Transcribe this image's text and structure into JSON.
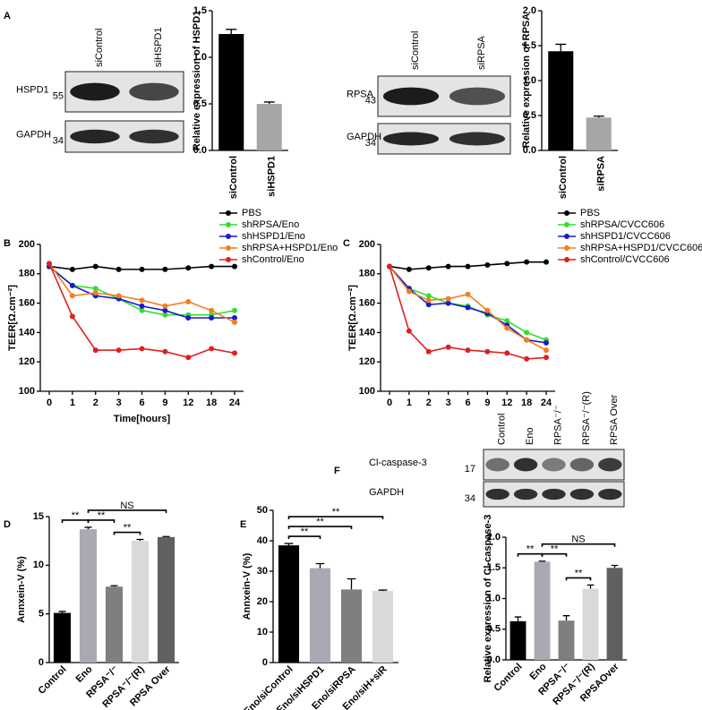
{
  "panel_labels": [
    "A",
    "B",
    "C",
    "D",
    "E",
    "F"
  ],
  "blots": [
    {
      "lanes": [
        "siControl",
        "siHSPD1"
      ],
      "rows": [
        {
          "name": "HSPD1",
          "size": "55"
        },
        {
          "name": "GAPDH",
          "size": "34"
        }
      ]
    },
    {
      "lanes": [
        "siControl",
        "siRPSA"
      ],
      "rows": [
        {
          "name": "RPSA",
          "size": "43"
        },
        {
          "name": "GAPDH",
          "size": "34"
        }
      ]
    },
    {
      "lanes": [
        "Control",
        "Eno",
        "RPSA⁻/⁻",
        "RPSA⁻/⁻(R)",
        "RPSA Over"
      ],
      "rows": [
        {
          "name": "Cl-caspase-3",
          "size": "17"
        },
        {
          "name": "GAPDH",
          "size": "34"
        }
      ]
    }
  ],
  "chart_data": [
    {
      "type": "bar",
      "ylabel": "Relative expression of HSPD1",
      "categories": [
        "siControl",
        "siHSPD1"
      ],
      "values": [
        1.25,
        0.5
      ],
      "errors": [
        0.05,
        0.02
      ],
      "colors": [
        "#000000",
        "#a6a6a6"
      ],
      "ylim": [
        0,
        1.5
      ],
      "yticks": [
        {
          "value": 0,
          "label": "0.0"
        },
        {
          "value": 0.5,
          "label": "0.5"
        },
        {
          "value": 1,
          "label": "1.0"
        },
        {
          "value": 1.5,
          "label": "1.5"
        }
      ]
    },
    {
      "type": "bar",
      "ylabel": "Relative expression of RPSA",
      "categories": [
        "siControl",
        "siRPSA"
      ],
      "values": [
        1.42,
        0.47
      ],
      "errors": [
        0.1,
        0.02
      ],
      "colors": [
        "#000000",
        "#a6a6a6"
      ],
      "ylim": [
        0,
        2
      ],
      "yticks": [
        {
          "value": 0,
          "label": "0.0"
        },
        {
          "value": 0.5,
          "label": "0.5"
        },
        {
          "value": 1,
          "label": "1.0"
        },
        {
          "value": 1.5,
          "label": "1.5"
        },
        {
          "value": 2,
          "label": "2.0"
        }
      ]
    },
    {
      "type": "line",
      "ylabel": "TEER[Ω.cm⁻²]",
      "xlabel": "Time[hours]",
      "categories": [
        "0",
        "1",
        "2",
        "3",
        "6",
        "9",
        "12",
        "18",
        "24"
      ],
      "ylim": [
        100,
        200
      ],
      "yticks": [
        100,
        120,
        140,
        160,
        180,
        200
      ],
      "series": [
        {
          "name": "PBS",
          "color": "#000000",
          "values": [
            185,
            183,
            185,
            183,
            183,
            183,
            184,
            185,
            185
          ]
        },
        {
          "name": "shRPSA/Eno",
          "color": "#33dd33",
          "values": [
            185,
            172,
            170,
            163,
            155,
            152,
            152,
            152,
            155
          ]
        },
        {
          "name": "shHSPD1/Eno",
          "color": "#1a1acc",
          "values": [
            185,
            172,
            165,
            163,
            158,
            155,
            150,
            150,
            150
          ]
        },
        {
          "name": "shRPSA+HSPD1/Eno",
          "color": "#f07f20",
          "values": [
            187,
            165,
            167,
            165,
            162,
            158,
            161,
            155,
            147
          ]
        },
        {
          "name": "shControl/Eno",
          "color": "#e02020",
          "values": [
            187,
            151,
            128,
            128,
            129,
            127,
            123,
            129,
            126
          ]
        }
      ]
    },
    {
      "type": "line",
      "ylabel": "TEER[Ω.cm⁻²]",
      "categories": [
        "0",
        "1",
        "2",
        "3",
        "6",
        "9",
        "12",
        "18",
        "24"
      ],
      "ylim": [
        100,
        200
      ],
      "yticks": [
        100,
        120,
        140,
        160,
        180,
        200
      ],
      "series": [
        {
          "name": "PBS",
          "color": "#000000",
          "values": [
            185,
            183,
            184,
            185,
            185,
            186,
            187,
            188,
            188
          ]
        },
        {
          "name": "shRPSA/CVCC606",
          "color": "#33dd33",
          "values": [
            185,
            170,
            165,
            160,
            158,
            152,
            148,
            140,
            135
          ]
        },
        {
          "name": "shHSPD1/CVCC606",
          "color": "#1a1acc",
          "values": [
            185,
            170,
            159,
            160,
            157,
            153,
            145,
            135,
            133
          ]
        },
        {
          "name": "shRPSA+HSPD1/CVCC606",
          "color": "#f07f20",
          "values": [
            185,
            168,
            162,
            163,
            166,
            155,
            143,
            135,
            128
          ]
        },
        {
          "name": "shControl/CVCC606",
          "color": "#e02020",
          "values": [
            185,
            141,
            127,
            130,
            128,
            127,
            126,
            122,
            123
          ]
        }
      ]
    },
    {
      "type": "bar",
      "ylabel": "Annxein-V (%)",
      "categories": [
        "Control",
        "Eno",
        "RPSA⁻/⁻",
        "RPSA⁻/⁻(R)",
        "RPSA Over"
      ],
      "values": [
        5.1,
        13.7,
        7.8,
        12.5,
        12.9
      ],
      "errors": [
        0.15,
        0.2,
        0.1,
        0.15,
        0.05
      ],
      "colors": [
        "#000000",
        "#a9a9b3",
        "#7f7f7f",
        "#d9d9d9",
        "#606060"
      ],
      "ylim": [
        0,
        15
      ],
      "yticks": [
        0,
        5,
        10,
        15
      ],
      "annotations": [
        {
          "text": "**",
          "from": "Control",
          "to": "Eno"
        },
        {
          "text": "**",
          "from": "Eno",
          "to": "RPSA⁻/⁻"
        },
        {
          "text": "**",
          "from": "RPSA⁻/⁻",
          "to": "RPSA⁻/⁻(R)"
        },
        {
          "text": "NS",
          "from": "Eno",
          "to": "RPSA Over"
        }
      ]
    },
    {
      "type": "bar",
      "ylabel": "Annxein-V (%)",
      "categories": [
        "Eno/siControl",
        "Eno/siHSPD1",
        "Eno/siRPSA",
        "Eno/siH+siR"
      ],
      "values": [
        38.5,
        31,
        24,
        23.5
      ],
      "errors": [
        0.6,
        1.5,
        3.5,
        0.3
      ],
      "colors": [
        "#000000",
        "#a9a9b3",
        "#7f7f7f",
        "#d9d9d9"
      ],
      "ylim": [
        0,
        50
      ],
      "yticks": [
        0,
        10,
        20,
        30,
        40,
        50
      ],
      "annotations": [
        {
          "text": "**",
          "from": "Eno/siControl",
          "to": "Eno/siHSPD1"
        },
        {
          "text": "**",
          "from": "Eno/siControl",
          "to": "Eno/siRPSA"
        },
        {
          "text": "**",
          "from": "Eno/siControl",
          "to": "Eno/siH+siR"
        }
      ]
    },
    {
      "type": "bar",
      "ylabel": "Relative expression of Cl-caspase-3",
      "categories": [
        "Control",
        "Eno",
        "RPSA⁻/⁻",
        "RPSA⁻/⁻(R)",
        "RPSAOver"
      ],
      "values": [
        0.63,
        1.6,
        0.64,
        1.16,
        1.5
      ],
      "errors": [
        0.07,
        0.01,
        0.08,
        0.06,
        0.04
      ],
      "colors": [
        "#000000",
        "#a9a9b3",
        "#7f7f7f",
        "#d9d9d9",
        "#606060"
      ],
      "ylim": [
        0,
        2
      ],
      "yticks": [
        {
          "value": 0,
          "label": "0.0"
        },
        {
          "value": 0.5,
          "label": "0.5"
        },
        {
          "value": 1,
          "label": "1.0"
        },
        {
          "value": 1.5,
          "label": "1.5"
        },
        {
          "value": 2,
          "label": "2.0"
        }
      ],
      "annotations": [
        {
          "text": "**",
          "from": "Control",
          "to": "Eno"
        },
        {
          "text": "**",
          "from": "Eno",
          "to": "RPSA⁻/⁻"
        },
        {
          "text": "**",
          "from": "RPSA⁻/⁻",
          "to": "RPSA⁻/⁻(R)"
        },
        {
          "text": "NS",
          "from": "Eno",
          "to": "RPSAOver"
        }
      ]
    }
  ]
}
